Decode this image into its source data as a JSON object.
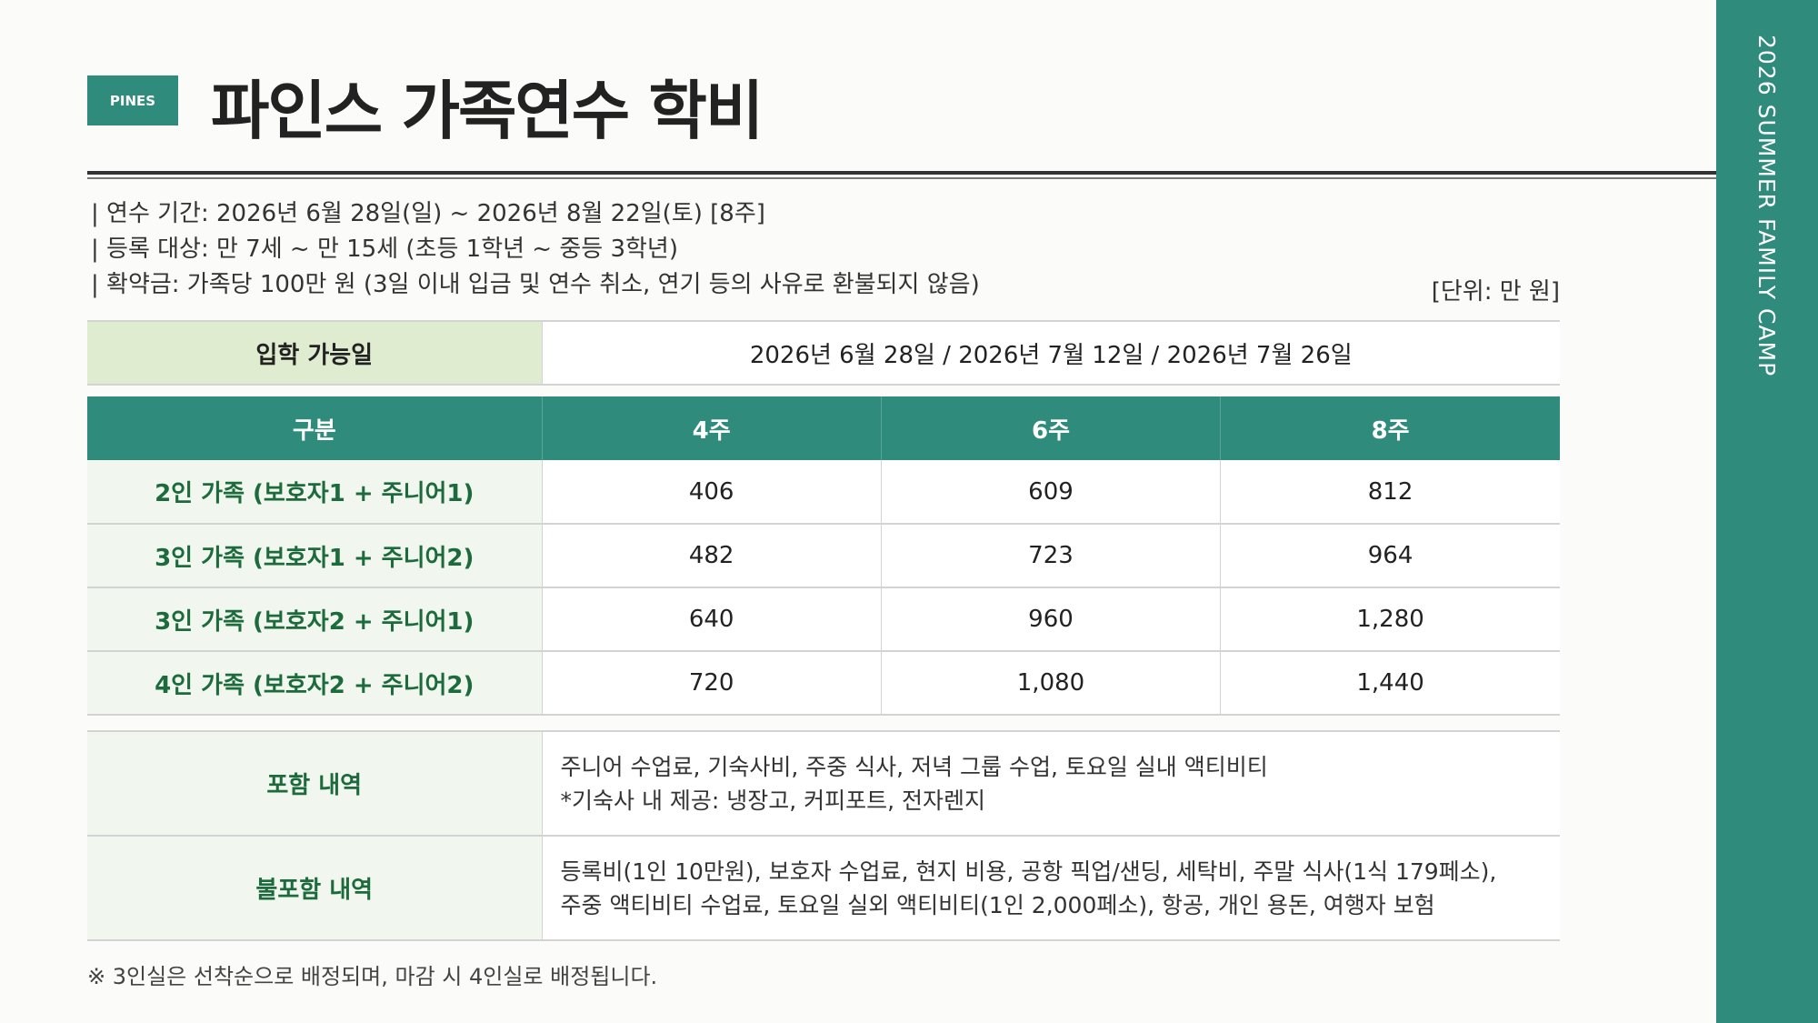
{
  "sidebar": {
    "text": "2026 SUMMER FAMILY CAMP",
    "color": "#2f8b7c"
  },
  "header": {
    "badge": "PINES",
    "title": "파인스 가족연수 학비"
  },
  "info": [
    "| 연수 기간: 2026년 6월 28일(일) ~ 2026년 8월 22일(토) [8주]",
    "| 등록 대상: 만 7세 ~ 만 15세 (초등 1학년 ~ 중등 3학년)",
    "| 확약금: 가족당 100만 원 (3일 이내 입금 및 연수 취소, 연기 등의 사유로 환불되지 않음)"
  ],
  "unit": "[단위: 만 원]",
  "admission": {
    "label": "입학 가능일",
    "value": "2026년 6월 28일 / 2026년 7월 12일 / 2026년 7월 26일"
  },
  "fees": {
    "headers": [
      "구분",
      "4주",
      "6주",
      "8주"
    ],
    "rows": [
      {
        "label": "2인 가족 (보호자1 + 주니어1)",
        "values": [
          "406",
          "609",
          "812"
        ]
      },
      {
        "label": "3인 가족 (보호자1 + 주니어2)",
        "values": [
          "482",
          "723",
          "964"
        ]
      },
      {
        "label": "3인 가족 (보호자2 + 주니어1)",
        "values": [
          "640",
          "960",
          "1,280"
        ]
      },
      {
        "label": "4인 가족 (보호자2 + 주니어2)",
        "values": [
          "720",
          "1,080",
          "1,440"
        ]
      }
    ]
  },
  "details": [
    {
      "label": "포함 내역",
      "lines": [
        "주니어 수업료, 기숙사비, 주중 식사, 저녁 그룹 수업, 토요일 실내 액티비티",
        "*기숙사 내 제공: 냉장고, 커피포트, 전자렌지"
      ]
    },
    {
      "label": "불포함 내역",
      "lines": [
        "등록비(1인 10만원), 보호자 수업료, 현지 비용, 공항 픽업/샌딩, 세탁비, 주말 식사(1식 179페소),",
        "주중 액티비티 수업료, 토요일 실외 액티비티(1인 2,000페소), 항공, 개인 용돈, 여행자 보험"
      ]
    }
  ],
  "footnote": "※ 3인실은 선착순으로 배정되며, 마감 시 4인실로 배정됩니다."
}
